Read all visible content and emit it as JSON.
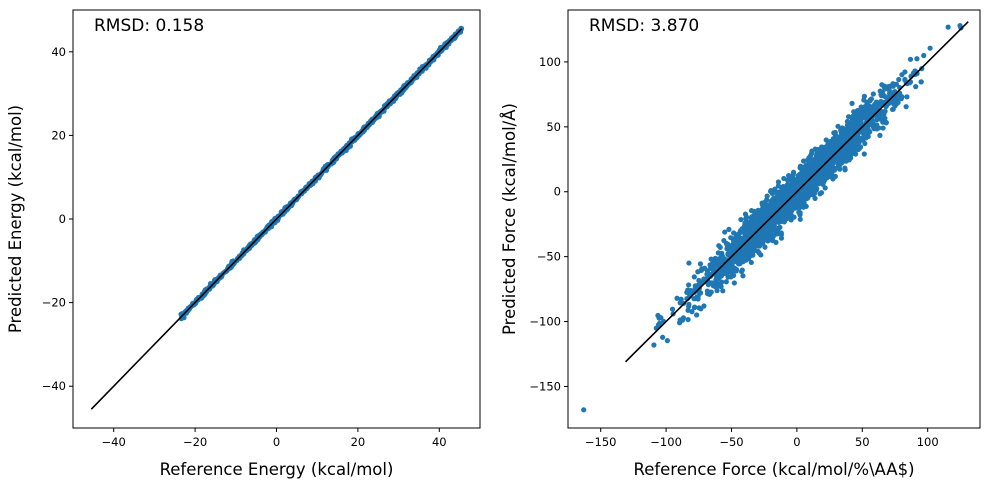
{
  "chart_data": [
    {
      "type": "scatter",
      "annotation": "RMSD: 0.158",
      "xlabel": "Reference Energy (kcal/mol)",
      "ylabel": "Predicted Energy (kcal/mol)",
      "xlim": [
        -50,
        50
      ],
      "ylim": [
        -50,
        50
      ],
      "xticks": [
        -40,
        -20,
        0,
        20,
        40
      ],
      "yticks": [
        -40,
        -20,
        0,
        20,
        40
      ],
      "tick_labels_x": [
        "−40",
        "−20",
        "0",
        "20",
        "40"
      ],
      "tick_labels_y": [
        "−40",
        "−20",
        "0",
        "20",
        "40"
      ],
      "point_color": "#1f77b4",
      "line_color": "#000000",
      "grid": false,
      "reference_line": {
        "x": [
          -45.5,
          45.5
        ],
        "y": [
          -45.5,
          45.5
        ]
      },
      "points_range": [
        -23.5,
        45.5
      ],
      "rmsd": 0.158
    },
    {
      "type": "scatter",
      "annotation": "RMSD: 3.870",
      "xlabel": "Reference Force (kcal/mol/%\\AA$)",
      "ylabel": "Predicted Force (kcal/mol/Å)",
      "xlim": [
        -175,
        140
      ],
      "ylim": [
        -182,
        140
      ],
      "xticks": [
        -150,
        -100,
        -50,
        0,
        50,
        100
      ],
      "yticks": [
        -150,
        -100,
        -50,
        0,
        50,
        100
      ],
      "tick_labels_x": [
        "−150",
        "−100",
        "−50",
        "0",
        "50",
        "100"
      ],
      "tick_labels_y": [
        "−150",
        "−100",
        "−50",
        "0",
        "50",
        "100"
      ],
      "point_color": "#1f77b4",
      "line_color": "#000000",
      "grid": false,
      "reference_line": {
        "x": [
          -131,
          131
        ],
        "y": [
          -131,
          131
        ]
      },
      "points_range": [
        -131,
        131
      ],
      "outlier": {
        "x": -163,
        "y": -168
      },
      "rmsd": 3.87
    }
  ]
}
